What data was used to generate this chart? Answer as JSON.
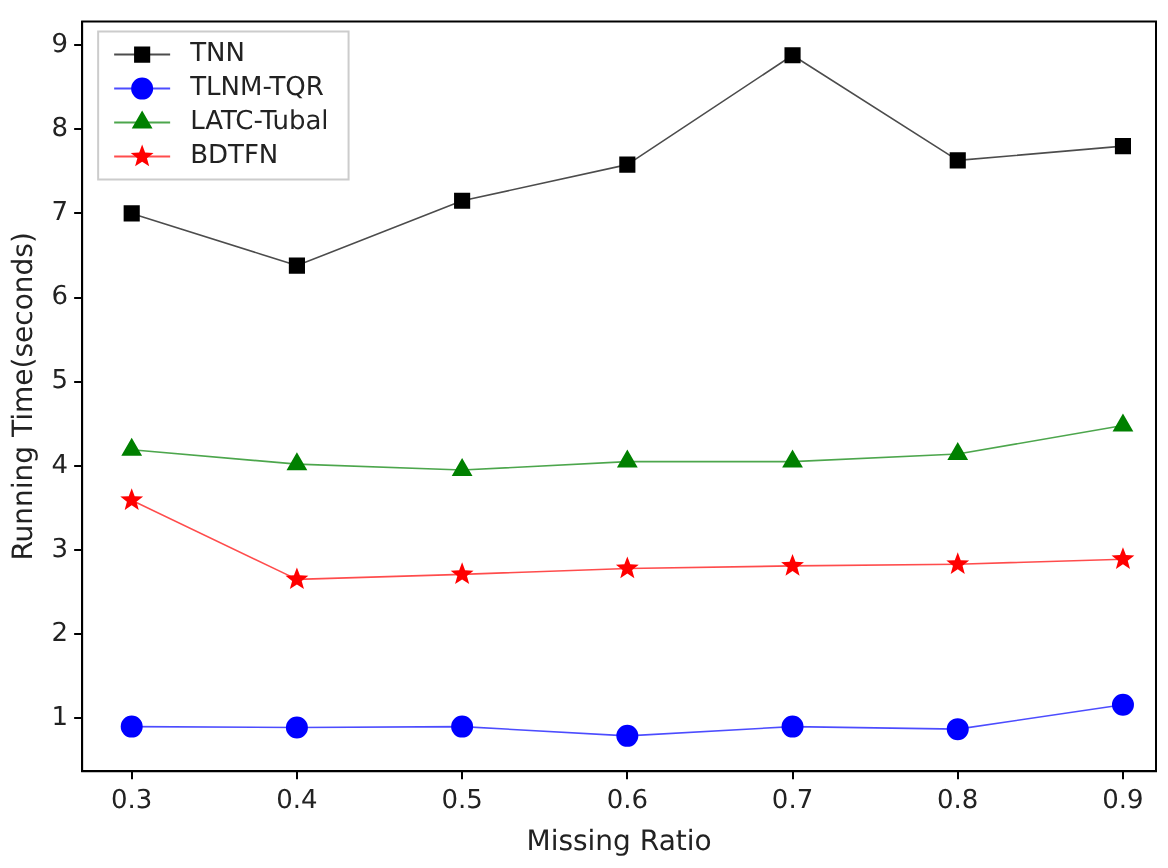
{
  "chart_data": {
    "type": "line",
    "xlabel": "Missing Ratio",
    "ylabel": "Running Time(seconds)",
    "x": [
      0.3,
      0.4,
      0.5,
      0.6,
      0.7,
      0.8,
      0.9
    ],
    "series": [
      {
        "name": "TNN",
        "color": "#000000",
        "marker": "square",
        "values": [
          7.0,
          6.38,
          7.15,
          7.58,
          8.88,
          7.63,
          7.8
        ]
      },
      {
        "name": "TLNM-TQR",
        "color": "#0000ff",
        "marker": "circle",
        "values": [
          0.9,
          0.89,
          0.9,
          0.79,
          0.9,
          0.87,
          1.16
        ]
      },
      {
        "name": "LATC-Tubal",
        "color": "#008000",
        "marker": "triangle",
        "values": [
          4.19,
          4.02,
          3.95,
          4.05,
          4.05,
          4.14,
          4.48
        ]
      },
      {
        "name": "BDTFN",
        "color": "#ff0000",
        "marker": "star",
        "values": [
          3.59,
          2.65,
          2.71,
          2.78,
          2.81,
          2.83,
          2.89
        ]
      }
    ],
    "xlim": [
      0.27,
      0.92
    ],
    "xticks": [
      0.3,
      0.4,
      0.5,
      0.6,
      0.7,
      0.8,
      0.9
    ],
    "ylim": [
      0.37,
      9.28
    ],
    "yticks": [
      1,
      2,
      3,
      4,
      5,
      6,
      7,
      8,
      9
    ],
    "grid": false,
    "legend": "top left"
  }
}
